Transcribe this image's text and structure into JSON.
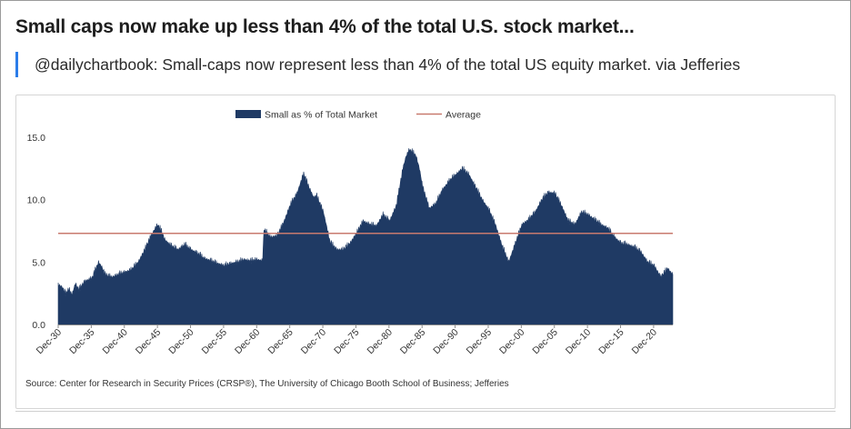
{
  "header": {
    "title": "Small caps now make up less than 4% of the total U.S. stock market...",
    "quote": "@dailychartbook: Small-caps now represent less than 4% of the total US equity market. via Jefferies"
  },
  "chart_data": {
    "type": "area",
    "series": [
      {
        "name": "Small as % of Total Market",
        "color": "#1f3a64",
        "x": [
          1930.9,
          1931.5,
          1932.0,
          1932.5,
          1933.0,
          1933.5,
          1934.0,
          1935.0,
          1936.0,
          1937.0,
          1937.5,
          1938.0,
          1939.0,
          1940.0,
          1941.0,
          1942.0,
          1943.0,
          1944.0,
          1945.0,
          1945.9,
          1946.5,
          1947.0,
          1948.0,
          1949.0,
          1950.0,
          1951.0,
          1952.0,
          1953.0,
          1954.0,
          1955.0,
          1956.0,
          1957.0,
          1958.0,
          1959.0,
          1960.0,
          1961.0,
          1961.8,
          1962.0,
          1963.0,
          1964.0,
          1965.0,
          1966.0,
          1967.0,
          1968.0,
          1968.8,
          1969.5,
          1970.0,
          1971.0,
          1972.0,
          1973.0,
          1974.0,
          1975.0,
          1976.0,
          1977.0,
          1978.0,
          1979.0,
          1980.0,
          1981.0,
          1982.0,
          1982.5,
          1983.0,
          1983.5,
          1984.0,
          1984.5,
          1985.0,
          1985.5,
          1986.0,
          1987.0,
          1988.0,
          1989.0,
          1990.0,
          1991.0,
          1992.0,
          1993.0,
          1994.0,
          1995.0,
          1996.0,
          1997.0,
          1998.0,
          1999.0,
          2000.0,
          2001.0,
          2002.0,
          2003.0,
          2004.0,
          2005.0,
          2006.0,
          2007.0,
          2008.0,
          2009.0,
          2010.0,
          2011.0,
          2012.0,
          2013.0,
          2014.0,
          2015.0,
          2016.0,
          2017.0,
          2018.0,
          2019.0,
          2020.0,
          2021.0,
          2022.0,
          2023.0,
          2023.8
        ],
        "values": [
          3.2,
          3.0,
          2.5,
          2.8,
          2.4,
          3.3,
          2.8,
          3.5,
          3.7,
          5.0,
          4.6,
          4.0,
          3.8,
          4.0,
          4.2,
          4.4,
          5.0,
          6.0,
          7.2,
          8.0,
          7.5,
          6.8,
          6.3,
          6.0,
          6.4,
          6.0,
          5.7,
          5.3,
          5.1,
          4.9,
          4.7,
          4.9,
          5.0,
          5.2,
          5.1,
          5.2,
          5.1,
          7.6,
          7.0,
          7.1,
          8.2,
          9.6,
          10.5,
          12.1,
          11.0,
          10.2,
          10.3,
          9.0,
          6.6,
          6.0,
          6.0,
          6.5,
          7.3,
          8.3,
          8.0,
          7.9,
          8.8,
          8.3,
          9.5,
          11.0,
          12.5,
          13.5,
          14.0,
          13.8,
          13.5,
          12.5,
          11.0,
          9.3,
          9.7,
          10.8,
          11.5,
          12.0,
          12.5,
          12.0,
          11.0,
          10.0,
          9.2,
          8.0,
          6.3,
          5.0,
          6.5,
          8.0,
          8.4,
          9.0,
          10.0,
          10.6,
          10.5,
          9.5,
          8.3,
          8.0,
          9.0,
          8.8,
          8.4,
          8.0,
          7.7,
          7.0,
          6.5,
          6.4,
          6.2,
          5.8,
          5.0,
          4.7,
          3.8,
          4.5,
          4.0
        ]
      },
      {
        "name": "Average",
        "color": "#c87a6e",
        "values": [
          7.3
        ]
      }
    ],
    "x_ticks": [
      "Dec-30",
      "Dec-35",
      "Dec-40",
      "Dec-45",
      "Dec-50",
      "Dec-55",
      "Dec-60",
      "Dec-65",
      "Dec-70",
      "Dec-75",
      "Dec-80",
      "Dec-85",
      "Dec-90",
      "Dec-95",
      "Dec-00",
      "Dec-05",
      "Dec-10",
      "Dec-15",
      "Dec-20"
    ],
    "x_tick_values": [
      1930.9,
      1935.9,
      1940.9,
      1945.9,
      1950.9,
      1955.9,
      1960.9,
      1965.9,
      1970.9,
      1975.9,
      1980.9,
      1985.9,
      1990.9,
      1995.9,
      2000.9,
      2005.9,
      2010.9,
      2015.9,
      2020.9
    ],
    "xlim": [
      1930.9,
      2023.8
    ],
    "y_ticks": [
      "0.0",
      "5.0",
      "10.0",
      "15.0"
    ],
    "y_tick_values": [
      0,
      5,
      10,
      15
    ],
    "ylim": [
      0,
      15
    ],
    "grid": false,
    "legend": "top-center",
    "source": "Source: Center for Research in Security Prices (CRSP®), The University of Chicago Booth School of Business; Jefferies"
  }
}
